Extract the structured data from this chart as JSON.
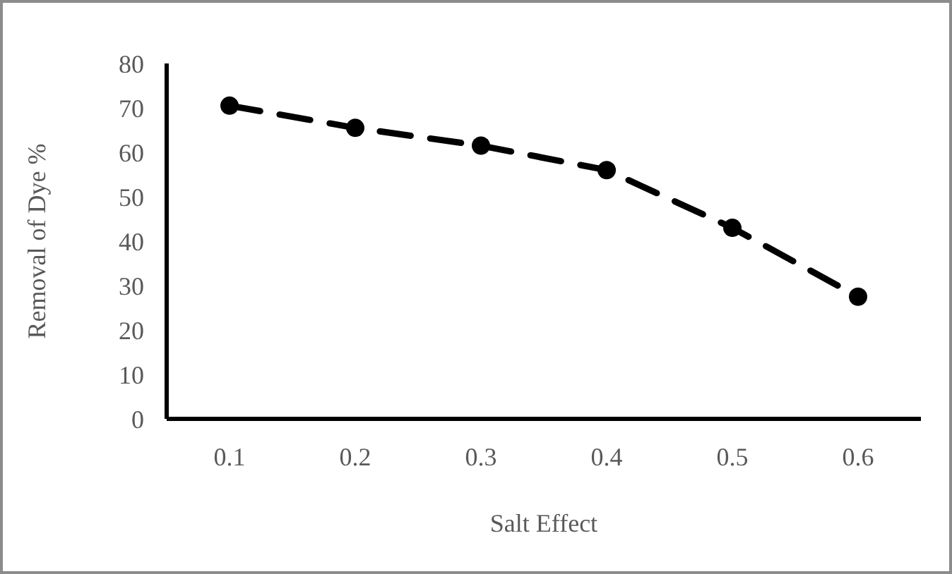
{
  "chart_data": {
    "type": "line",
    "xlabel": "Salt Effect",
    "ylabel": "Removal of Dye %",
    "categories": [
      "0.1",
      "0.2",
      "0.3",
      "0.4",
      "0.5",
      "0.6"
    ],
    "series": [
      {
        "color": "#000000",
        "values": [
          70.5,
          65.5,
          61.5,
          56,
          43,
          27.5
        ]
      }
    ],
    "ylim": [
      0,
      80
    ],
    "yticks": [
      0,
      10,
      20,
      30,
      40,
      50,
      60,
      70,
      80
    ],
    "marker": "circle",
    "line_style": "dashed",
    "grid": false
  }
}
